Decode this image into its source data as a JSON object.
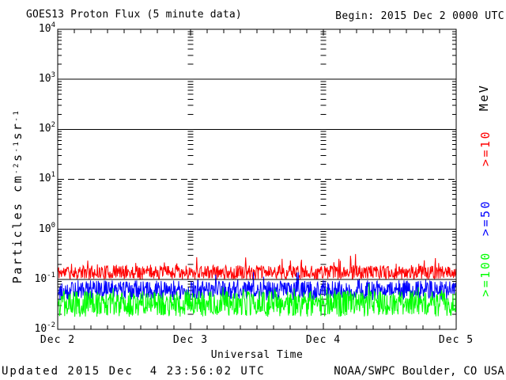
{
  "header": {
    "title": "GOES13 Proton Flux (5 minute data)",
    "begin_label": "Begin: 2015 Dec 2 0000 UTC"
  },
  "footer": {
    "updated": "Updated 2015 Dec  4 23:56:02 UTC",
    "source": "NOAA/SWPC Boulder, CO USA"
  },
  "colors": {
    "axis": "#000000",
    "background": "#ffffff",
    "gte10": "#ff0000",
    "gte50": "#0000ff",
    "gte100": "#00ff00"
  },
  "chart_data": {
    "type": "line",
    "title": "GOES13 Proton Flux (5 minute data)",
    "subtitle_right": "Begin: 2015 Dec 2 0000 UTC",
    "xlabel": "Universal Time",
    "ylabel_plain": "Particles cm^-2 s^-1 sr^-1",
    "ylabel_segments": [
      {
        "t": "Particles cm"
      },
      {
        "sup": "-2"
      },
      {
        "t": "s"
      },
      {
        "sup": "-1"
      },
      {
        "t": "sr"
      },
      {
        "sup": "-1"
      }
    ],
    "x_tick_labels": [
      "Dec 2",
      "Dec 3",
      "Dec 4",
      "Dec 5"
    ],
    "x_range_days": 3,
    "x_minor_ticks_per_day": 8,
    "y_scale": "log",
    "y_log_min": -2,
    "y_log_max": 4,
    "ylim": [
      0.01,
      10000
    ],
    "y_tick_labels": [
      [
        {
          "t": "10"
        },
        {
          "sup": "4"
        }
      ],
      [
        {
          "t": "10"
        },
        {
          "sup": "3"
        }
      ],
      [
        {
          "t": "10"
        },
        {
          "sup": "2"
        }
      ],
      [
        {
          "t": "10"
        },
        {
          "sup": "1"
        }
      ],
      [
        {
          "t": "10"
        },
        {
          "sup": "0"
        }
      ],
      [
        {
          "t": "10"
        },
        {
          "sup": "-1"
        }
      ],
      [
        {
          "t": "10"
        },
        {
          "sup": "-2"
        }
      ]
    ],
    "grid": {
      "solid_decades": [
        3,
        2,
        0,
        -1
      ],
      "dashed_decades": [
        1
      ],
      "day_column_days": [
        1,
        2
      ]
    },
    "right_axis": {
      "unit": "MeV",
      "series_labels": [
        {
          "text": ">=10",
          "color": "#ff0000",
          "center_y": 186
        },
        {
          "text": ">=50",
          "color": "#0000ff",
          "center_y": 274
        },
        {
          "text": ">=100",
          "color": "#00ff00",
          "center_y": 345
        }
      ]
    },
    "cadence_minutes": 5,
    "series": [
      {
        "name": ">=10 MeV protons",
        "label": ">=10",
        "color": "#ff0000",
        "approx_values": {
          "median": 0.13,
          "floor": 0.1,
          "typical_max": 0.2,
          "peak": 0.35
        },
        "synth": {
          "n": 864,
          "seed": 11,
          "floor_log": -1.0,
          "band_log": 0.28,
          "spike_prob": 0.05,
          "spike_log": 0.25
        }
      },
      {
        "name": ">=50 MeV protons",
        "label": ">=50",
        "color": "#0000ff",
        "approx_values": {
          "median": 0.065,
          "floor": 0.038,
          "typical_max": 0.1,
          "peak": 0.17
        },
        "synth": {
          "n": 864,
          "seed": 29,
          "floor_log": -1.42,
          "band_log": 0.4,
          "spike_prob": 0.04,
          "spike_log": 0.2
        }
      },
      {
        "name": ">=100 MeV protons",
        "label": ">=100",
        "color": "#00ff00",
        "approx_values": {
          "median": 0.033,
          "floor": 0.018,
          "typical_max": 0.06,
          "peak": 0.09
        },
        "synth": {
          "n": 864,
          "seed": 47,
          "floor_log": -1.75,
          "band_log": 0.52,
          "spike_prob": 0.03,
          "spike_log": 0.16
        }
      }
    ],
    "begin": "2015 Dec 2 0000 UTC",
    "updated": "2015 Dec 4 23:56:02 UTC",
    "legend_position": "right"
  }
}
